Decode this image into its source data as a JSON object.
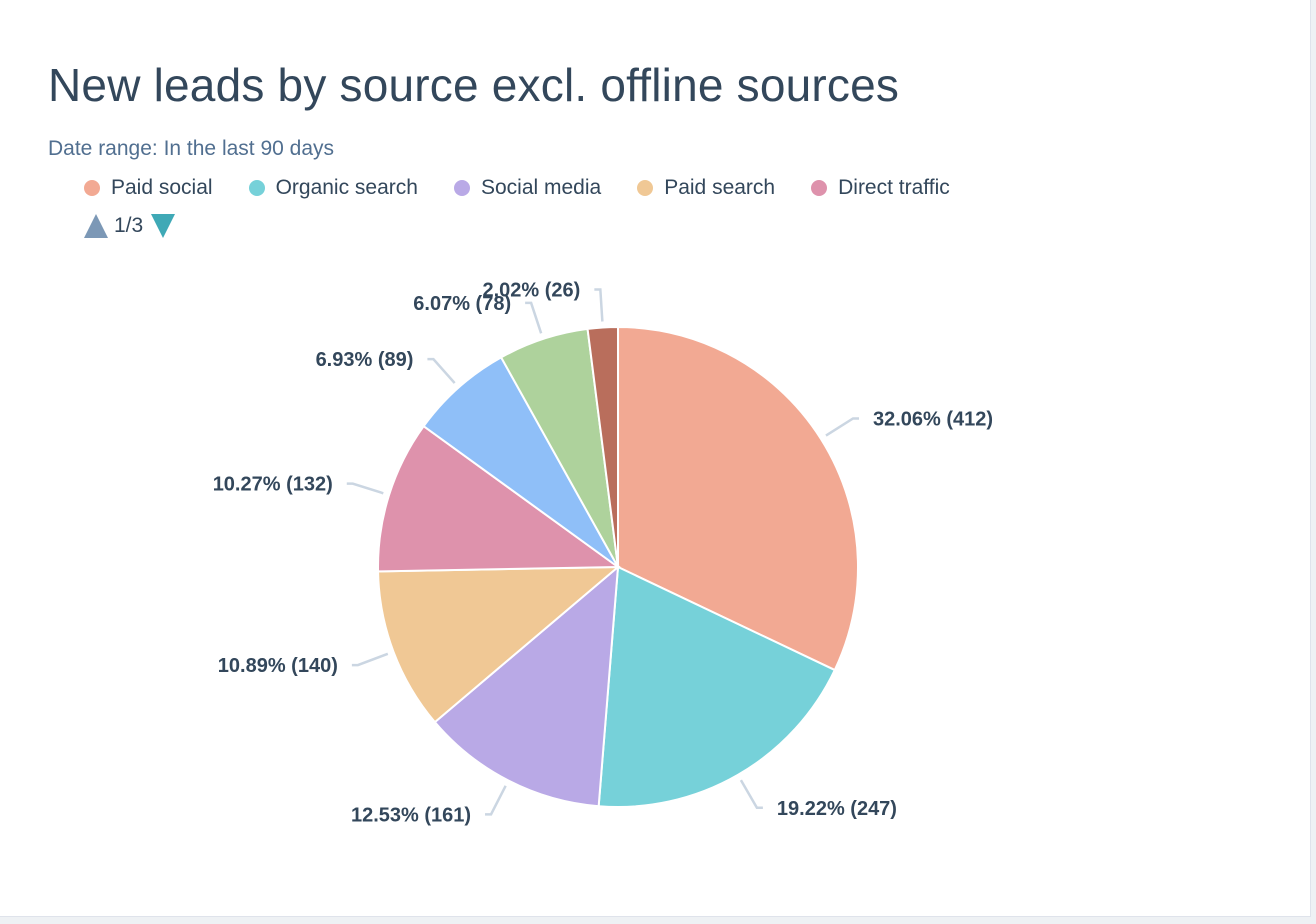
{
  "title": "New leads by source excl. offline sources",
  "subtitle": "Date range: In the last 90 days",
  "legend": [
    {
      "label": "Paid social",
      "color": "#f2a993"
    },
    {
      "label": "Organic search",
      "color": "#76d1d9"
    },
    {
      "label": "Social media",
      "color": "#b9a9e6"
    },
    {
      "label": "Paid search",
      "color": "#f0c895"
    },
    {
      "label": "Direct traffic",
      "color": "#de92ac"
    }
  ],
  "pager": {
    "text": "1/3"
  },
  "chart_data": {
    "type": "pie",
    "title": "New leads by source excl. offline sources",
    "slices": [
      {
        "name": "Paid social",
        "value": 412,
        "percent": 32.06,
        "label": "32.06% (412)",
        "color": "#f2a993"
      },
      {
        "name": "Organic search",
        "value": 247,
        "percent": 19.22,
        "label": "19.22% (247)",
        "color": "#76d1d9"
      },
      {
        "name": "Social media",
        "value": 161,
        "percent": 12.53,
        "label": "12.53% (161)",
        "color": "#b9a9e6"
      },
      {
        "name": "Paid search",
        "value": 140,
        "percent": 10.89,
        "label": "10.89% (140)",
        "color": "#f0c895"
      },
      {
        "name": "Direct traffic",
        "value": 132,
        "percent": 10.27,
        "label": "10.27% (132)",
        "color": "#de92ac"
      },
      {
        "name": "",
        "value": 89,
        "percent": 6.93,
        "label": "6.93% (89)",
        "color": "#8fbff8"
      },
      {
        "name": "",
        "value": 78,
        "percent": 6.07,
        "label": "6.07% (78)",
        "color": "#aed29c"
      },
      {
        "name": "",
        "value": 26,
        "percent": 2.02,
        "label": "2.02% (26)",
        "color": "#b96e5c"
      }
    ]
  }
}
